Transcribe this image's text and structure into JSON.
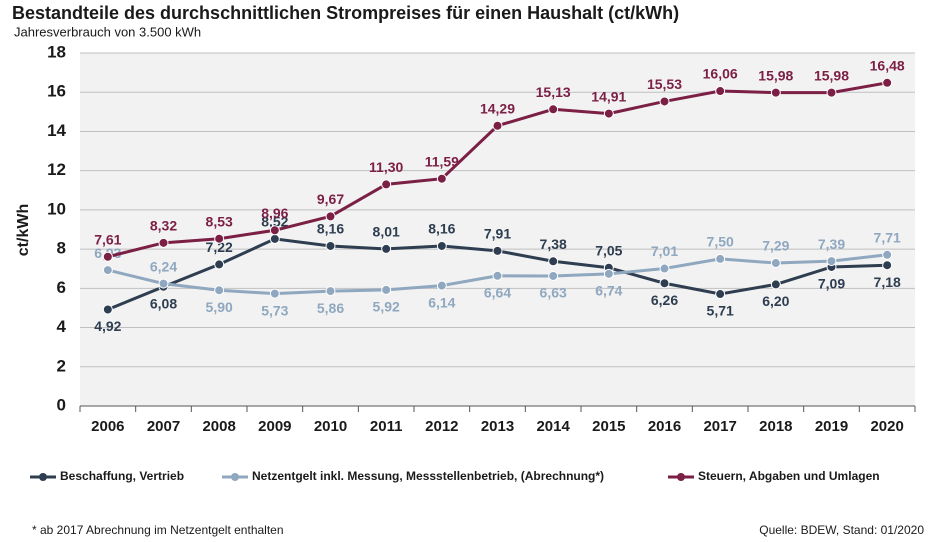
{
  "chart_data": {
    "type": "line",
    "title": "Bestandteile des durchschnittlichen Strompreises für einen Haushalt (ct/kWh)",
    "subtitle": "Jahresverbrauch von 3.500 kWh",
    "y_label": "ct/kWh",
    "categories": [
      "2006",
      "2007",
      "2008",
      "2009",
      "2010",
      "2011",
      "2012",
      "2013",
      "2014",
      "2015",
      "2016",
      "2017",
      "2018",
      "2019",
      "2020"
    ],
    "ylim": [
      0,
      18
    ],
    "yticks": [
      0,
      2,
      4,
      6,
      8,
      10,
      12,
      14,
      16,
      18
    ],
    "grid": true,
    "legend": "bottom",
    "series": [
      {
        "name": "Beschaffung, Vertrieb",
        "color": "#2e3e50",
        "values": [
          4.92,
          6.08,
          7.22,
          8.52,
          8.16,
          8.01,
          8.16,
          7.91,
          7.38,
          7.05,
          6.26,
          5.71,
          6.2,
          7.09,
          7.18
        ],
        "value_labels": [
          "4,92",
          "6,08",
          "7,22",
          "8,52",
          "8,16",
          "8,01",
          "8,16",
          "7,91",
          "7,38",
          "7,05",
          "6,26",
          "5,71",
          "6,20",
          "7,09",
          "7,18"
        ]
      },
      {
        "name": "Netzentgelt inkl. Messung, Messstellenbetrieb, (Abrechnung*)",
        "color": "#8fa8c0",
        "values": [
          6.93,
          6.24,
          5.9,
          5.73,
          5.86,
          5.92,
          6.14,
          6.64,
          6.63,
          6.74,
          7.01,
          7.5,
          7.29,
          7.39,
          7.71
        ],
        "value_labels": [
          "6,93",
          "6,24",
          "5,90",
          "5,73",
          "5,86",
          "5,92",
          "6,14",
          "6,64",
          "6,63",
          "6,74",
          "7,01",
          "7,50",
          "7,29",
          "7,39",
          "7,71"
        ]
      },
      {
        "name": "Steuern, Abgaben und Umlagen",
        "color": "#7b1f45",
        "values": [
          7.61,
          8.32,
          8.53,
          8.96,
          9.67,
          11.3,
          11.59,
          14.29,
          15.13,
          14.91,
          15.53,
          16.06,
          15.98,
          15.98,
          16.48
        ],
        "value_labels": [
          "7,61",
          "8,32",
          "8,53",
          "8,96",
          "9,67",
          "11,30",
          "11,59",
          "14,29",
          "15,13",
          "14,91",
          "15,53",
          "16,06",
          "15,98",
          "15,98",
          "16,48"
        ]
      }
    ],
    "footnote": "* ab 2017 Abrechnung  im Netzentgelt enthalten",
    "source": "Quelle: BDEW, Stand: 01/2020"
  }
}
